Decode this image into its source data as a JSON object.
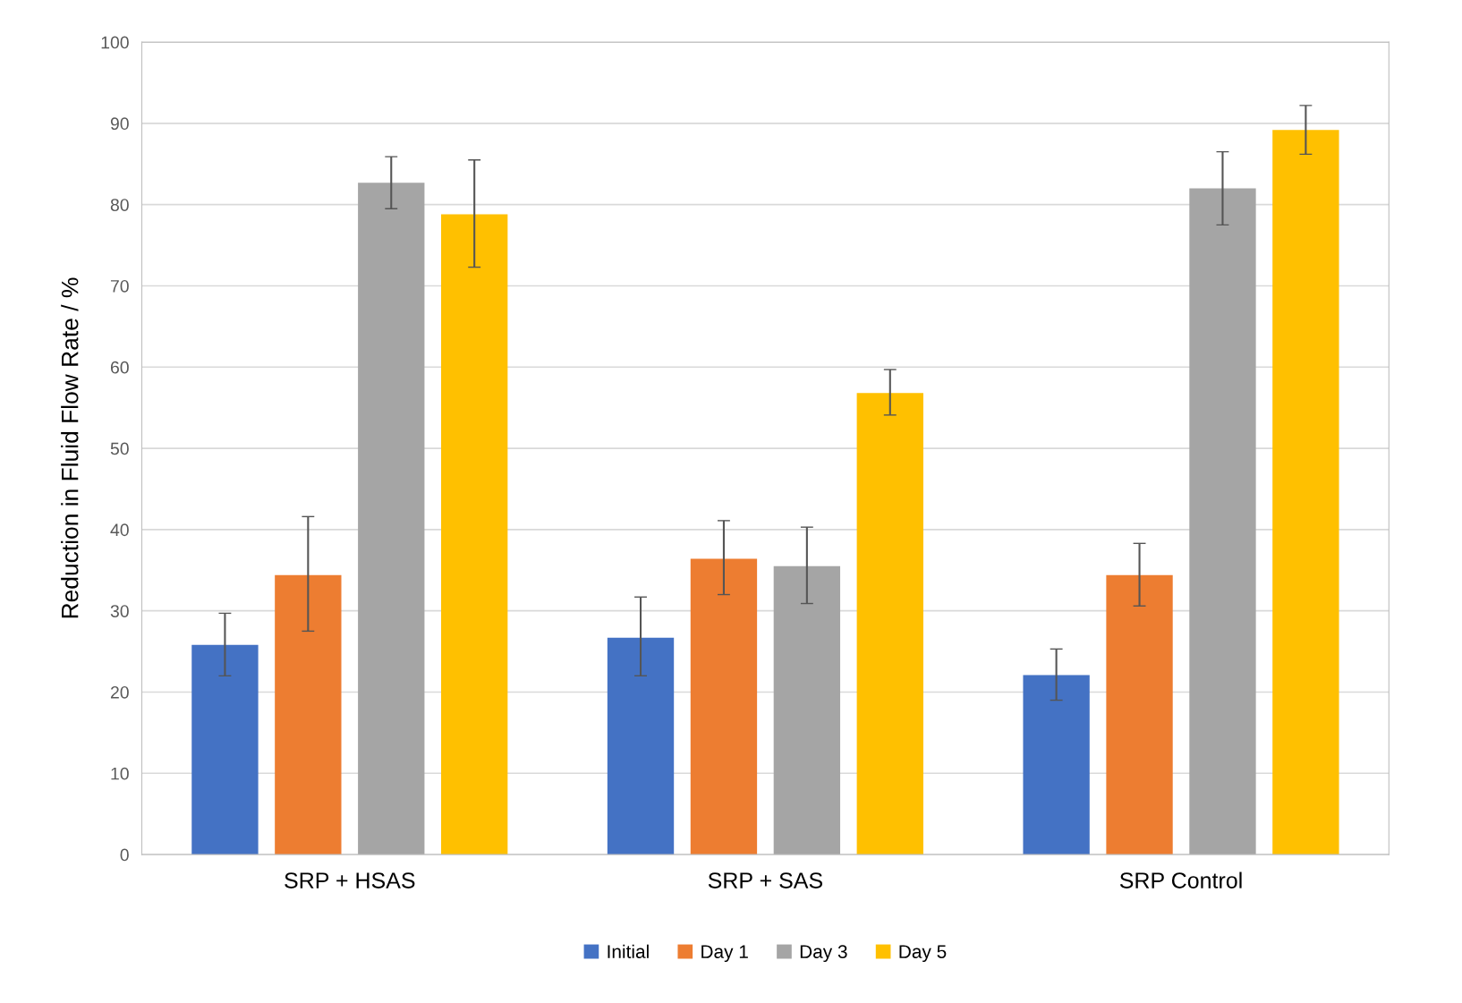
{
  "chart_data": {
    "type": "bar",
    "ylabel": "Reduction in Fluid Flow Rate / %",
    "categories": [
      "SRP + HSAS",
      "SRP + SAS",
      "SRP Control"
    ],
    "series": [
      {
        "name": "Initial",
        "color": "#4472c4",
        "values": [
          25.8,
          26.7,
          22.1
        ],
        "errors": [
          [
            22.0,
            29.7
          ],
          [
            22.0,
            31.7
          ],
          [
            19.0,
            25.3
          ]
        ]
      },
      {
        "name": "Day 1",
        "color": "#ed7d31",
        "values": [
          34.4,
          36.4,
          34.4
        ],
        "errors": [
          [
            27.5,
            41.6
          ],
          [
            32.0,
            41.1
          ],
          [
            30.6,
            38.3
          ]
        ]
      },
      {
        "name": "Day 3",
        "color": "#a5a5a5",
        "values": [
          82.7,
          35.5,
          82.0
        ],
        "errors": [
          [
            79.5,
            85.9
          ],
          [
            30.9,
            40.3
          ],
          [
            77.5,
            86.5
          ]
        ]
      },
      {
        "name": "Day 5",
        "color": "#ffc000",
        "values": [
          78.8,
          56.8,
          89.2
        ],
        "errors": [
          [
            72.3,
            85.5
          ],
          [
            54.1,
            59.7
          ],
          [
            86.2,
            92.2
          ]
        ]
      }
    ],
    "ylim": [
      0,
      100
    ],
    "yticks": [
      0,
      10,
      20,
      30,
      40,
      50,
      60,
      70,
      80,
      90,
      100
    ],
    "grid": "y",
    "legend": "bottom"
  }
}
